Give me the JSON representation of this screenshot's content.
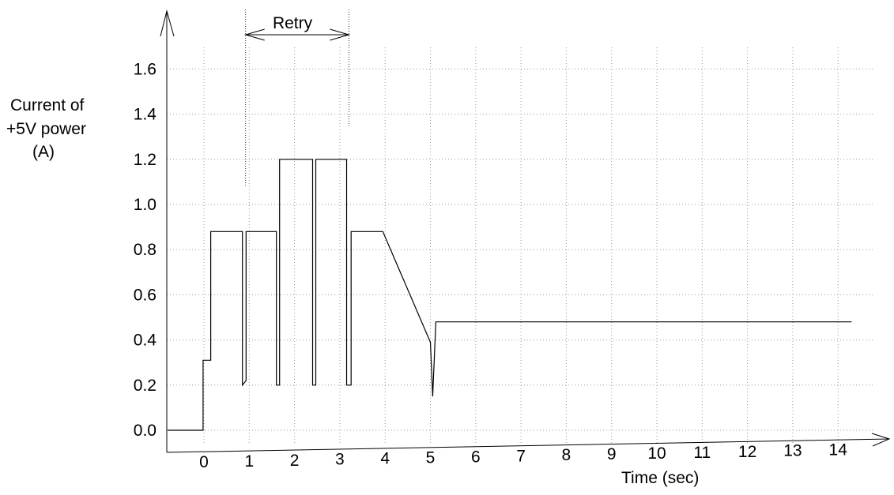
{
  "chart_data": {
    "type": "line",
    "ylabel_lines": [
      "Current of",
      "+5V power",
      "(A)"
    ],
    "xlabel": "Time (sec)",
    "x_ticks": [
      0,
      1,
      2,
      3,
      4,
      5,
      6,
      7,
      8,
      9,
      10,
      11,
      12,
      13,
      14
    ],
    "y_ticks": [
      "0.0",
      "0.2",
      "0.4",
      "0.6",
      "0.8",
      "1.0",
      "1.2",
      "1.4",
      "1.6"
    ],
    "xlim": [
      -0.8,
      14.7
    ],
    "ylim": [
      0,
      1.7
    ],
    "grid": true,
    "annotation": {
      "text": "Retry",
      "x_start": 0.92,
      "x_end": 3.2
    },
    "series": [
      {
        "points": [
          [
            -0.8,
            0.0
          ],
          [
            -0.02,
            0.0
          ],
          [
            -0.02,
            0.31
          ],
          [
            0.15,
            0.31
          ],
          [
            0.15,
            0.88
          ],
          [
            0.85,
            0.88
          ],
          [
            0.85,
            0.2
          ],
          [
            0.93,
            0.22
          ],
          [
            0.93,
            0.88
          ],
          [
            1.6,
            0.88
          ],
          [
            1.6,
            0.2
          ],
          [
            1.67,
            0.2
          ],
          [
            1.67,
            1.2
          ],
          [
            2.4,
            1.2
          ],
          [
            2.4,
            0.2
          ],
          [
            2.47,
            0.2
          ],
          [
            2.47,
            1.2
          ],
          [
            3.15,
            1.2
          ],
          [
            3.15,
            0.2
          ],
          [
            3.25,
            0.2
          ],
          [
            3.25,
            0.88
          ],
          [
            3.95,
            0.88
          ],
          [
            5.0,
            0.39
          ],
          [
            5.05,
            0.15
          ],
          [
            5.12,
            0.48
          ],
          [
            14.3,
            0.48
          ]
        ]
      }
    ]
  }
}
